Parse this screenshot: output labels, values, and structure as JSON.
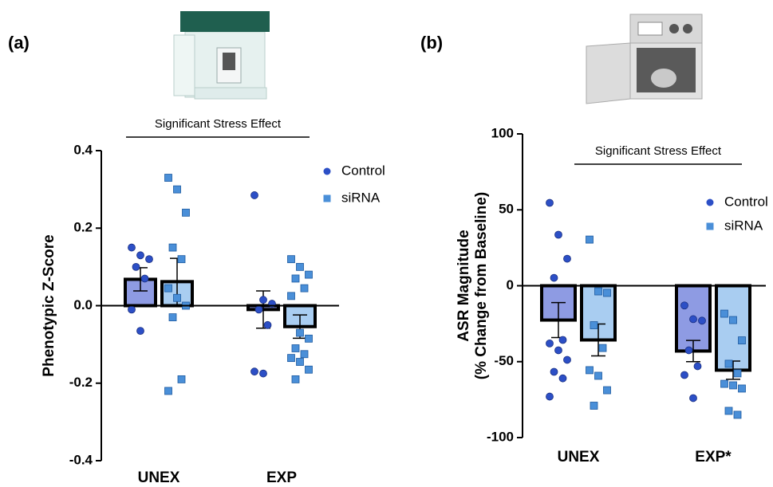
{
  "chart_data": [
    {
      "type": "bar",
      "panel_label": "(a)",
      "annotation": "Significant Stress Effect",
      "ylabel": [
        "Phenotypic Z-Score"
      ],
      "categories": [
        "UNEX",
        "EXP"
      ],
      "ylim": [
        -0.4,
        0.4
      ],
      "yticks": [
        -0.4,
        -0.2,
        {
          "value": 0,
          "label": "0.0"
        },
        0.2,
        0.4
      ],
      "series": [
        {
          "name": "Control",
          "color": "#8e9be3",
          "point_color": "#2c4fc6",
          "marker": "circle",
          "values": [
            0.068,
            -0.01
          ],
          "errors": [
            0.03,
            0.048
          ],
          "points": [
            [
              0.15,
              0.13,
              0.12,
              0.1,
              0.07,
              -0.01,
              -0.065
            ],
            [
              0.285,
              0.015,
              0.005,
              -0.01,
              -0.05,
              -0.17,
              -0.175
            ]
          ]
        },
        {
          "name": "siRNA",
          "color": "#a9cdf1",
          "point_color": "#4a8fd8",
          "marker": "square",
          "values": [
            0.062,
            -0.054
          ],
          "errors": [
            0.06,
            0.03
          ],
          "points": [
            [
              0.33,
              0.3,
              0.24,
              0.15,
              0.12,
              0.045,
              0.02,
              0.0,
              -0.03,
              -0.19,
              -0.22
            ],
            [
              0.12,
              0.1,
              0.08,
              0.07,
              0.045,
              0.025,
              -0.07,
              -0.085,
              -0.11,
              -0.125,
              -0.135,
              -0.145,
              -0.165,
              -0.19
            ]
          ]
        }
      ]
    },
    {
      "type": "bar",
      "panel_label": "(b)",
      "annotation": "Significant Stress Effect",
      "ylabel": [
        "ASR Magnitude",
        "(% Change from Baseline)"
      ],
      "categories": [
        "UNEX",
        "EXP*"
      ],
      "ylim": [
        -100,
        100
      ],
      "yticks": [
        -100,
        -50,
        0,
        50,
        100
      ],
      "series": [
        {
          "name": "Control",
          "color": "#8e9be3",
          "point_color": "#2c4fc6",
          "marker": "circle",
          "values": [
            -22.6,
            -43
          ],
          "errors": [
            11.5,
            7
          ],
          "points": [
            [
              54.6,
              33.6,
              17.8,
              5.2,
              -35.7,
              -38,
              -42.5,
              -48.8,
              -56.7,
              -61,
              -73
            ],
            [
              -13,
              -22,
              -23,
              -42.5,
              -53,
              -58.8,
              -74
            ]
          ]
        },
        {
          "name": "siRNA",
          "color": "#a9cdf1",
          "point_color": "#4a8fd8",
          "marker": "square",
          "values": [
            -35.7,
            -55.6
          ],
          "errors": [
            10.5,
            6
          ],
          "points": [
            [
              30.4,
              -3.7,
              -4.7,
              -26,
              -41,
              -55.6,
              -59.3,
              -68.8,
              -79
            ],
            [
              -18.4,
              -22.6,
              -36,
              -51.4,
              -57.7,
              -64.6,
              -65.6,
              -67.7,
              -82.4,
              -85
            ]
          ]
        }
      ]
    }
  ]
}
